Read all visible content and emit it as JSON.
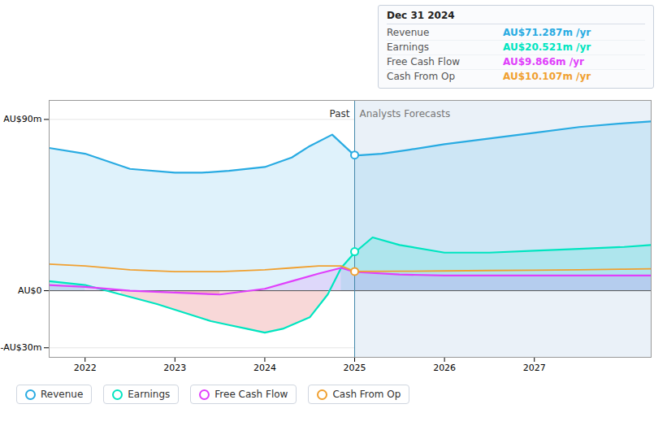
{
  "chart_data": {
    "type": "line",
    "xlim": [
      2021.6,
      2028.3
    ],
    "xticks": [
      2022,
      2023,
      2024,
      2025,
      2026,
      2027
    ],
    "ylim": [
      -35,
      100
    ],
    "yticks": [
      {
        "value": 90,
        "label": "AU$90m"
      },
      {
        "value": 0,
        "label": "AU$0"
      },
      {
        "value": -30,
        "label": "-AU$30m"
      }
    ],
    "grid": true,
    "legend": "bottom",
    "divider": {
      "x": 2025.0,
      "left_label": "Past",
      "right_label": "Analysts Forecasts"
    },
    "series": [
      {
        "name": "Revenue",
        "type": "area",
        "color": "#29abe2",
        "x": [
          2021.6,
          2022.0,
          2022.5,
          2023.0,
          2023.3,
          2023.6,
          2024.0,
          2024.3,
          2024.5,
          2024.75,
          2025.0,
          2025.3,
          2025.6,
          2026.0,
          2026.5,
          2027.0,
          2027.5,
          2028.0,
          2028.3
        ],
        "values": [
          75,
          72,
          64,
          62,
          62,
          63,
          65,
          70,
          76,
          82,
          71,
          72,
          74,
          77,
          80,
          83,
          86,
          88,
          89
        ],
        "point": {
          "x": 2025.0,
          "y": 71.287
        }
      },
      {
        "name": "Earnings",
        "type": "area",
        "color": "#00e5c0",
        "x": [
          2021.6,
          2022.0,
          2022.4,
          2022.8,
          2023.0,
          2023.2,
          2023.4,
          2023.6,
          2023.8,
          2024.0,
          2024.2,
          2024.5,
          2024.7,
          2024.85,
          2025.0,
          2025.2,
          2025.5,
          2026.0,
          2026.5,
          2027.0,
          2027.5,
          2028.0,
          2028.3
        ],
        "values": [
          5,
          3,
          -2,
          -7,
          -10,
          -13,
          -16,
          -18,
          -20,
          -22,
          -20,
          -14,
          -2,
          12,
          20,
          28,
          24,
          20,
          20,
          21,
          22,
          23,
          24
        ],
        "point": {
          "x": 2025.0,
          "y": 20.521
        }
      },
      {
        "name": "Free Cash Flow",
        "type": "area",
        "color": "#e040fb",
        "x": [
          2021.6,
          2022.0,
          2022.5,
          2023.0,
          2023.5,
          2024.0,
          2024.3,
          2024.6,
          2024.85,
          2025.0,
          2025.5,
          2026.0,
          2026.5,
          2027.0,
          2027.5,
          2028.0,
          2028.3
        ],
        "values": [
          3,
          2,
          0,
          -1,
          -2,
          1,
          5,
          9,
          12,
          9.866,
          8.5,
          8.0,
          8.0,
          8.0,
          8.0,
          8.0,
          8.0
        ]
      },
      {
        "name": "Cash From Op",
        "type": "line",
        "color": "#f0a030",
        "x": [
          2021.6,
          2022.0,
          2022.5,
          2023.0,
          2023.5,
          2024.0,
          2024.3,
          2024.6,
          2024.85,
          2025.0,
          2025.5,
          2026.0,
          2026.5,
          2027.0,
          2027.5,
          2028.0,
          2028.3
        ],
        "values": [
          14,
          13,
          11,
          10,
          10,
          11,
          12,
          13,
          13,
          10.107,
          10.2,
          10.4,
          10.6,
          10.8,
          11.0,
          11.3,
          11.5
        ],
        "point": {
          "x": 2025.0,
          "y": 10.107
        }
      }
    ],
    "tooltip": {
      "title": "Dec 31 2024",
      "rows": [
        {
          "name": "Revenue",
          "value": 71.287,
          "label": "AU$71.287m /yr"
        },
        {
          "name": "Earnings",
          "value": 20.521,
          "label": "AU$20.521m /yr"
        },
        {
          "name": "Free Cash Flow",
          "value": 9.866,
          "label": "AU$9.866m /yr"
        },
        {
          "name": "Cash From Op",
          "value": 10.107,
          "label": "AU$10.107m /yr"
        }
      ]
    }
  }
}
